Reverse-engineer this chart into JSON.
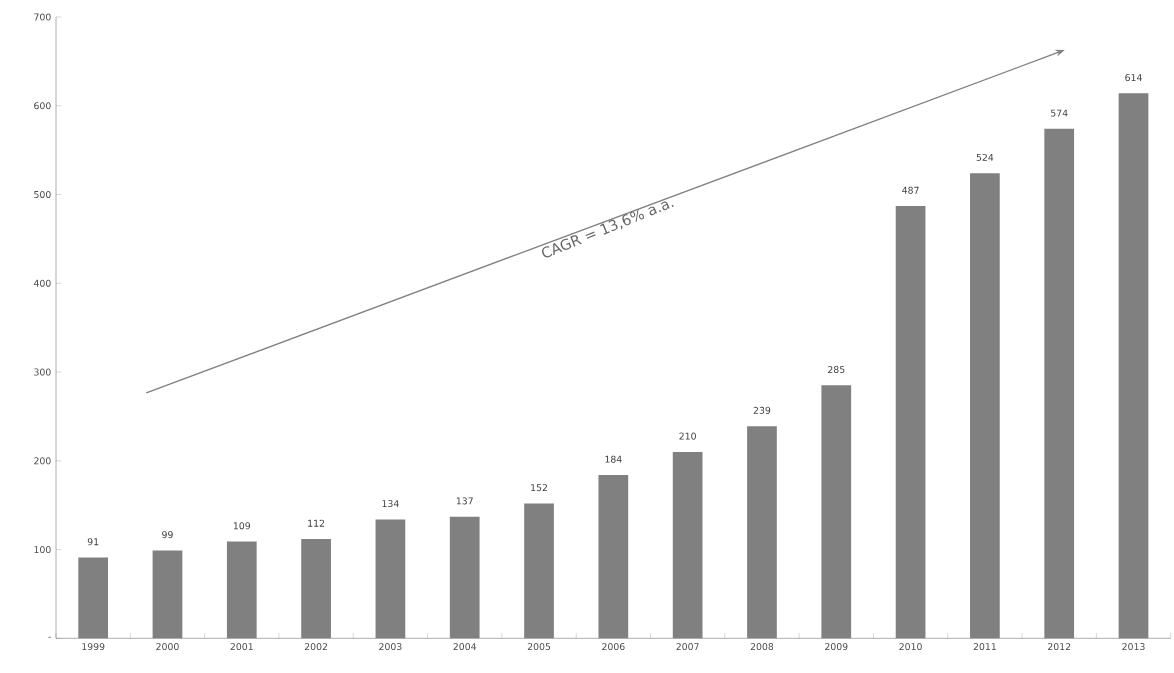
{
  "chart_data": {
    "type": "bar",
    "categories": [
      "1999",
      "2000",
      "2001",
      "2002",
      "2003",
      "2004",
      "2005",
      "2006",
      "2007",
      "2008",
      "2009",
      "2010",
      "2011",
      "2012",
      "2013"
    ],
    "values": [
      91,
      99,
      109,
      112,
      134,
      137,
      152,
      184,
      210,
      239,
      285,
      487,
      524,
      574,
      614
    ],
    "color": "#808080",
    "ylim": [
      0,
      700
    ],
    "yticks": [
      {
        "value": 0,
        "label": "-"
      },
      100,
      200,
      300,
      400,
      500,
      600,
      700
    ],
    "data_labels": true,
    "annotations": [
      "CAGR = 13,6% a.a."
    ]
  }
}
